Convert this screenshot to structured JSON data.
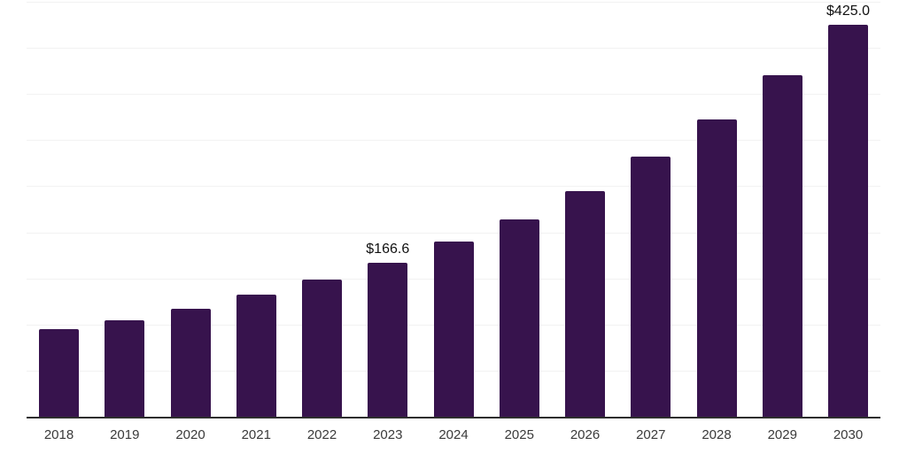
{
  "chart_data": {
    "type": "bar",
    "title": "",
    "xlabel": "",
    "ylabel": "",
    "categories": [
      "2018",
      "2019",
      "2020",
      "2021",
      "2022",
      "2023",
      "2024",
      "2025",
      "2026",
      "2027",
      "2028",
      "2029",
      "2030"
    ],
    "values": [
      94.6,
      104.3,
      117.5,
      132.4,
      148.7,
      166.6,
      190.0,
      214.0,
      245.0,
      282.0,
      322.5,
      370.0,
      425.0
    ],
    "value_labels": [
      "",
      "",
      "",
      "",
      "",
      "$166.6",
      "",
      "",
      "",
      "",
      "",
      "",
      "$425.0"
    ],
    "ylim": [
      0,
      450
    ],
    "grid_step": 50,
    "grid": "horizontal",
    "legend_position": "none",
    "colors": {
      "bar": "#37134D",
      "gridline": "#f2f2f2",
      "axis_line": "#2e2e2e",
      "tick_label": "#3a3a3a",
      "value_label": "#111111",
      "background": "#ffffff"
    }
  }
}
